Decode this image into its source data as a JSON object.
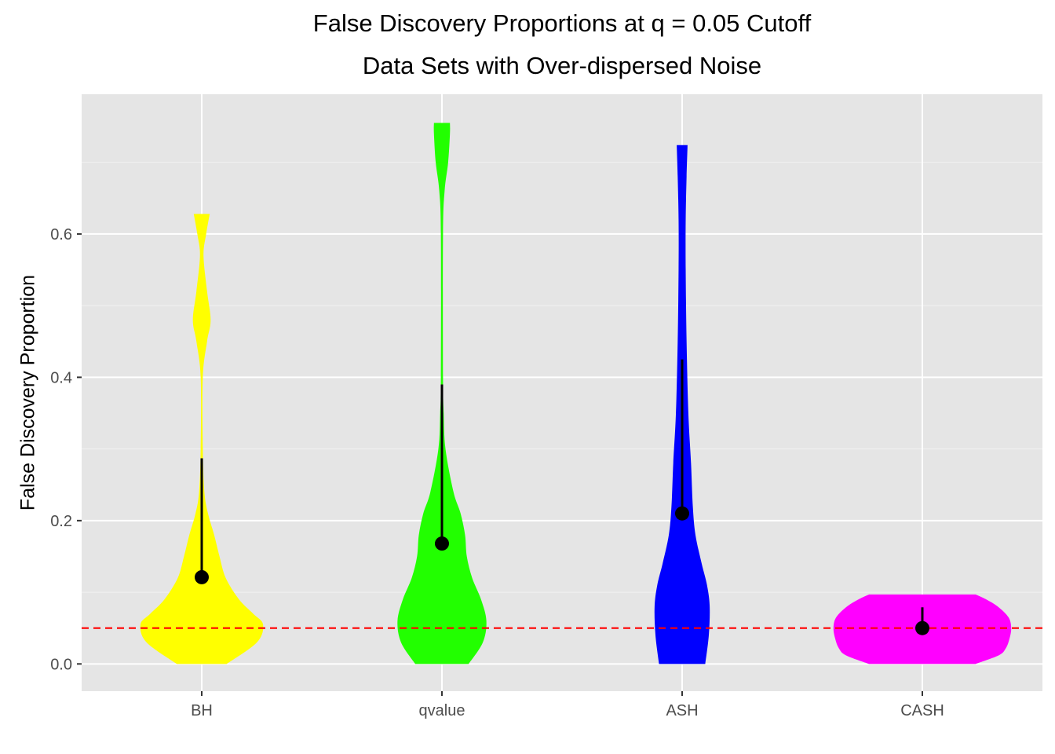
{
  "chart_data": {
    "type": "violin",
    "title": "False Discovery Proportions at q = 0.05 Cutoff",
    "subtitle": "Data Sets with Over-dispersed Noise",
    "xlabel": "",
    "ylabel": "False Discovery Proportion",
    "ylim": [
      -0.038,
      0.795
    ],
    "yticks": [
      0.0,
      0.2,
      0.4,
      0.6
    ],
    "ytick_labels": [
      "0.0",
      "0.2",
      "0.4",
      "0.6"
    ],
    "reference_line": {
      "y": 0.05,
      "color": "#ff0000",
      "style": "dashed"
    },
    "categories": [
      "BH",
      "qvalue",
      "ASH",
      "CASH"
    ],
    "series": [
      {
        "name": "BH",
        "color": "#ffff00",
        "mean": 0.121,
        "upper": 0.287,
        "min": 0.0,
        "max": 0.628,
        "density": [
          [
            0.0,
            0.28
          ],
          [
            0.03,
            0.62
          ],
          [
            0.055,
            0.69
          ],
          [
            0.07,
            0.58
          ],
          [
            0.09,
            0.42
          ],
          [
            0.12,
            0.27
          ],
          [
            0.15,
            0.2
          ],
          [
            0.18,
            0.14
          ],
          [
            0.21,
            0.07
          ],
          [
            0.24,
            0.03
          ],
          [
            0.3,
            0.012
          ],
          [
            0.4,
            0.012
          ],
          [
            0.45,
            0.06
          ],
          [
            0.48,
            0.1
          ],
          [
            0.52,
            0.06
          ],
          [
            0.57,
            0.02
          ],
          [
            0.6,
            0.05
          ],
          [
            0.628,
            0.09
          ]
        ]
      },
      {
        "name": "qvalue",
        "color": "#22ff00",
        "mean": 0.168,
        "upper": 0.39,
        "min": 0.0,
        "max": 0.755,
        "density": [
          [
            0.0,
            0.3
          ],
          [
            0.03,
            0.46
          ],
          [
            0.06,
            0.5
          ],
          [
            0.09,
            0.44
          ],
          [
            0.12,
            0.34
          ],
          [
            0.15,
            0.28
          ],
          [
            0.18,
            0.26
          ],
          [
            0.21,
            0.21
          ],
          [
            0.24,
            0.13
          ],
          [
            0.3,
            0.04
          ],
          [
            0.35,
            0.02
          ],
          [
            0.4,
            0.012
          ],
          [
            0.6,
            0.012
          ],
          [
            0.66,
            0.03
          ],
          [
            0.7,
            0.07
          ],
          [
            0.74,
            0.09
          ],
          [
            0.755,
            0.09
          ]
        ]
      },
      {
        "name": "ASH",
        "color": "#0000ff",
        "mean": 0.21,
        "upper": 0.425,
        "min": 0.0,
        "max": 0.724,
        "density": [
          [
            0.0,
            0.26
          ],
          [
            0.04,
            0.3
          ],
          [
            0.08,
            0.31
          ],
          [
            0.11,
            0.28
          ],
          [
            0.14,
            0.22
          ],
          [
            0.18,
            0.15
          ],
          [
            0.22,
            0.12
          ],
          [
            0.28,
            0.1
          ],
          [
            0.35,
            0.07
          ],
          [
            0.45,
            0.05
          ],
          [
            0.55,
            0.04
          ],
          [
            0.62,
            0.04
          ],
          [
            0.68,
            0.05
          ],
          [
            0.72,
            0.06
          ],
          [
            0.724,
            0.06
          ]
        ]
      },
      {
        "name": "CASH",
        "color": "#ff00ff",
        "mean": 0.05,
        "upper": 0.079,
        "min": 0.0,
        "max": 0.097,
        "density": [
          [
            0.0,
            0.6
          ],
          [
            0.012,
            0.86
          ],
          [
            0.022,
            0.94
          ],
          [
            0.035,
            0.98
          ],
          [
            0.05,
            1.0
          ],
          [
            0.065,
            0.97
          ],
          [
            0.08,
            0.85
          ],
          [
            0.09,
            0.72
          ],
          [
            0.097,
            0.6
          ]
        ]
      }
    ]
  }
}
